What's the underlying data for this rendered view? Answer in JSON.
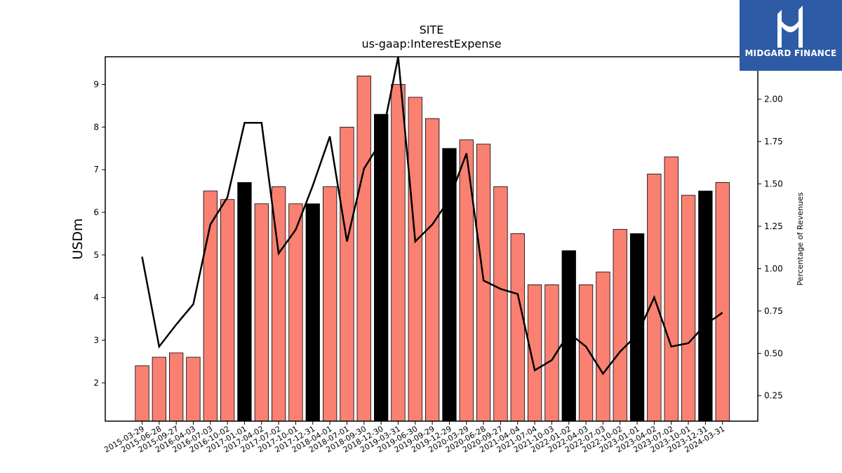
{
  "brand": {
    "name": "MIDGARD FINANCE",
    "bg_color": "#2d5ba6"
  },
  "chart_data": {
    "type": "bar",
    "title": "SITE",
    "subtitle": "us-gaap:InterestExpense",
    "ylabel": "USDm",
    "y2label": "Percentage of Revenues",
    "ylim": [
      1.1,
      9.65
    ],
    "y2lim": [
      0.1,
      2.25
    ],
    "yticks": [
      2,
      3,
      4,
      5,
      6,
      7,
      8,
      9
    ],
    "y2ticks": [
      "0.25",
      "0.50",
      "0.75",
      "1.00",
      "1.25",
      "1.50",
      "1.75",
      "2.00"
    ],
    "categories": [
      "2015-03-29",
      "2015-06-28",
      "2015-09-27",
      "2016-04-03",
      "2016-07-03",
      "2016-10-02",
      "2017-01-01",
      "2017-04-02",
      "2017-07-02",
      "2017-10-01",
      "2017-12-31",
      "2018-04-01",
      "2018-07-01",
      "2018-09-30",
      "2018-12-30",
      "2019-03-31",
      "2019-06-30",
      "2019-09-29",
      "2019-12-29",
      "2020-03-29",
      "2020-06-28",
      "2020-09-27",
      "2021-04-04",
      "2021-07-04",
      "2021-10-03",
      "2022-01-02",
      "2022-04-03",
      "2022-07-03",
      "2022-10-02",
      "2023-01-01",
      "2023-04-02",
      "2023-07-02",
      "2023-10-01",
      "2023-12-31",
      "2024-03-31"
    ],
    "series": [
      {
        "type": "bar",
        "values": [
          2.4,
          2.6,
          2.7,
          2.6,
          6.5,
          6.3,
          6.7,
          6.2,
          6.6,
          6.2,
          6.2,
          6.6,
          8.0,
          9.2,
          8.3,
          9.0,
          8.7,
          8.2,
          7.5,
          7.7,
          7.6,
          6.6,
          5.5,
          4.3,
          4.3,
          5.1,
          4.3,
          4.6,
          5.6,
          5.5,
          6.9,
          7.3,
          6.4,
          6.5,
          6.7
        ],
        "highlight": [
          false,
          false,
          false,
          false,
          false,
          false,
          true,
          false,
          false,
          false,
          true,
          false,
          false,
          false,
          true,
          false,
          false,
          false,
          true,
          false,
          false,
          false,
          false,
          false,
          false,
          true,
          false,
          false,
          false,
          true,
          false,
          false,
          false,
          true,
          false
        ]
      },
      {
        "type": "line",
        "axis": "right",
        "values": [
          1.07,
          0.54,
          0.67,
          0.79,
          1.26,
          1.42,
          1.86,
          1.86,
          1.09,
          1.23,
          1.49,
          1.78,
          1.16,
          1.59,
          1.75,
          2.25,
          1.16,
          1.26,
          1.41,
          1.68,
          0.93,
          0.88,
          0.85,
          0.4,
          0.46,
          0.62,
          0.54,
          0.38,
          0.51,
          0.61,
          0.83,
          0.54,
          0.56,
          0.67,
          0.74
        ]
      }
    ],
    "colors": {
      "bar": "#fa8072",
      "bar_highlight": "#000000",
      "line": "#000000"
    },
    "grid": false
  }
}
